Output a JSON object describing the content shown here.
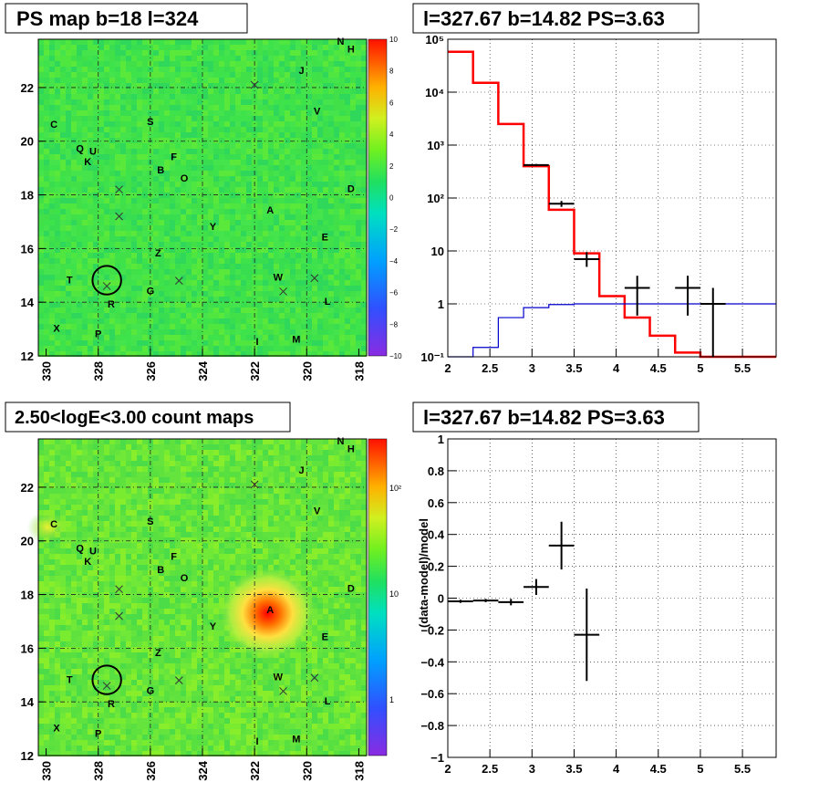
{
  "titles": {
    "ps_map": "PS map b=18 l=324",
    "spectrum": "l=327.67 b=14.82 PS=3.63",
    "count_map": "2.50<logE<3.00 count maps",
    "residual": "l=327.67 b=14.82 PS=3.63"
  },
  "residual_ylabel": "(data-model)/model",
  "sky_labels": [
    {
      "t": "N",
      "l": 318.7,
      "b": 23.6
    },
    {
      "t": "H",
      "l": 318.3,
      "b": 23.3
    },
    {
      "t": "J",
      "l": 320.2,
      "b": 22.5
    },
    {
      "t": "V",
      "l": 319.6,
      "b": 21.0
    },
    {
      "t": "C",
      "l": 329.7,
      "b": 20.5
    },
    {
      "t": "S",
      "l": 326.0,
      "b": 20.6
    },
    {
      "t": "Q",
      "l": 328.7,
      "b": 19.6
    },
    {
      "t": "U",
      "l": 328.2,
      "b": 19.5
    },
    {
      "t": "K",
      "l": 328.4,
      "b": 19.1
    },
    {
      "t": "F",
      "l": 325.1,
      "b": 19.3
    },
    {
      "t": "B",
      "l": 325.6,
      "b": 18.8
    },
    {
      "t": "O",
      "l": 324.7,
      "b": 18.5
    },
    {
      "t": "D",
      "l": 318.3,
      "b": 18.1
    },
    {
      "t": "A",
      "l": 321.4,
      "b": 17.3
    },
    {
      "t": "Y",
      "l": 323.6,
      "b": 16.7
    },
    {
      "t": "E",
      "l": 319.3,
      "b": 16.3
    },
    {
      "t": "Z",
      "l": 325.7,
      "b": 15.7
    },
    {
      "t": "T",
      "l": 329.1,
      "b": 14.7
    },
    {
      "t": "W",
      "l": 321.1,
      "b": 14.8
    },
    {
      "t": "G",
      "l": 326.0,
      "b": 14.3
    },
    {
      "t": "R",
      "l": 327.5,
      "b": 13.8
    },
    {
      "t": "L",
      "l": 319.2,
      "b": 13.9
    },
    {
      "t": "X",
      "l": 329.6,
      "b": 12.9
    },
    {
      "t": "P",
      "l": 328.0,
      "b": 12.7
    },
    {
      "t": "I",
      "l": 321.9,
      "b": 12.4
    },
    {
      "t": "M",
      "l": 320.4,
      "b": 12.5
    }
  ],
  "sky_crosses": [
    {
      "l": 327.2,
      "b": 18.2
    },
    {
      "l": 327.2,
      "b": 17.2
    },
    {
      "l": 324.9,
      "b": 14.8
    },
    {
      "l": 320.9,
      "b": 14.4
    },
    {
      "l": 319.7,
      "b": 14.9
    },
    {
      "l": 327.67,
      "b": 14.6
    },
    {
      "l": 322.0,
      "b": 22.1
    }
  ],
  "circle": {
    "l": 327.67,
    "b": 14.82,
    "r": 0.55
  },
  "sky_axes": {
    "x_ticks": [
      "330",
      "328",
      "326",
      "324",
      "322",
      "320",
      "318"
    ],
    "y_ticks": [
      "22",
      "20",
      "18",
      "16",
      "14",
      "12"
    ]
  },
  "ps_colorbar": {
    "labels": [
      "10",
      "8",
      "6",
      "4",
      "2",
      "0",
      "−2",
      "−4",
      "−6",
      "−8",
      "−10"
    ]
  },
  "count_colorbar": {
    "labels": [
      "10²",
      "10",
      "1"
    ]
  },
  "chart_data": [
    {
      "type": "heatmap",
      "title": "PS map b=18 l=324",
      "xlabel": "",
      "ylabel": "",
      "xlim": [
        330.3,
        317.7
      ],
      "ylim": [
        12,
        23.8
      ],
      "colorbar_range": [
        -10,
        10
      ],
      "description_values": "near-zero residual map (values ~0 to 2)"
    },
    {
      "type": "line",
      "title": "l=327.67 b=14.82 PS=3.63",
      "xlim": [
        2,
        5.9
      ],
      "ylim": [
        0.1,
        100000
      ],
      "yscale": "log",
      "x_ticks": [
        "2",
        "2.5",
        "3",
        "3.5",
        "4",
        "4.5",
        "5",
        "5.5"
      ],
      "y_ticks": [
        "10⁻¹",
        "1",
        "10",
        "10²",
        "10³",
        "10⁴",
        "10⁵"
      ],
      "series": [
        {
          "color": "#ff0000",
          "bin_edges": [
            2.0,
            2.3,
            2.6,
            2.9,
            3.2,
            3.5,
            3.8,
            4.1,
            4.4,
            4.7,
            5.0,
            5.3,
            5.6,
            5.9
          ],
          "values": [
            58000,
            15000,
            2500,
            400,
            60,
            9,
            1.4,
            0.55,
            0.25,
            0.12,
            0.09,
            0.09,
            0.09
          ]
        },
        {
          "color": "#0000cc",
          "bin_edges": [
            2.0,
            2.3,
            2.6,
            2.9,
            3.2,
            3.5,
            3.8,
            4.1,
            4.4,
            4.7,
            5.0,
            5.3,
            5.6,
            5.9
          ],
          "values": [
            0.1,
            0.15,
            0.55,
            0.85,
            0.97,
            1.0,
            1.0,
            1.0,
            1.0,
            1.0,
            1.0,
            1.0,
            1.0
          ]
        }
      ],
      "data_points": [
        {
          "x": 3.05,
          "y": 420,
          "dx": 0.15,
          "ylo": 400,
          "yhi": 440
        },
        {
          "x": 3.35,
          "y": 78,
          "dx": 0.15,
          "ylo": 68,
          "yhi": 88
        },
        {
          "x": 3.65,
          "y": 7,
          "dx": 0.15,
          "ylo": 5,
          "yhi": 9.5
        },
        {
          "x": 4.25,
          "y": 2,
          "dx": 0.15,
          "ylo": 0.6,
          "yhi": 3.4
        },
        {
          "x": 4.85,
          "y": 2,
          "dx": 0.15,
          "ylo": 0.6,
          "yhi": 3.4
        },
        {
          "x": 5.15,
          "y": 1,
          "dx": 0.15,
          "ylo": 0.1,
          "yhi": 2
        }
      ]
    },
    {
      "type": "heatmap",
      "title": "2.50<logE<3.00 count maps",
      "xlim": [
        330.3,
        317.7
      ],
      "ylim": [
        12,
        23.8
      ],
      "colorbar_scale": "log",
      "hotspot": {
        "l": 321.5,
        "b": 17.3
      }
    },
    {
      "type": "scatter",
      "title": "l=327.67 b=14.82 PS=3.63",
      "xlim": [
        2,
        5.9
      ],
      "ylim": [
        -1,
        1
      ],
      "ylabel": "(data-model)/model",
      "x_ticks": [
        "2",
        "2.5",
        "3",
        "3.5",
        "4",
        "4.5",
        "5",
        "5.5"
      ],
      "y_ticks": [
        "−1",
        "−0.8",
        "−0.6",
        "−0.4",
        "−0.2",
        "0",
        "0.2",
        "0.4",
        "0.6",
        "0.8",
        "1"
      ],
      "points": [
        {
          "x": 2.15,
          "y": -0.02,
          "dx": 0.15,
          "ey": 0.01
        },
        {
          "x": 2.45,
          "y": -0.015,
          "dx": 0.15,
          "ey": 0.01
        },
        {
          "x": 2.75,
          "y": -0.025,
          "dx": 0.15,
          "ey": 0.02
        },
        {
          "x": 3.05,
          "y": 0.07,
          "dx": 0.15,
          "ey": 0.05
        },
        {
          "x": 3.35,
          "y": 0.33,
          "dx": 0.15,
          "ey": 0.15
        },
        {
          "x": 3.65,
          "y": -0.23,
          "dx": 0.15,
          "ey": 0.29
        }
      ]
    }
  ]
}
